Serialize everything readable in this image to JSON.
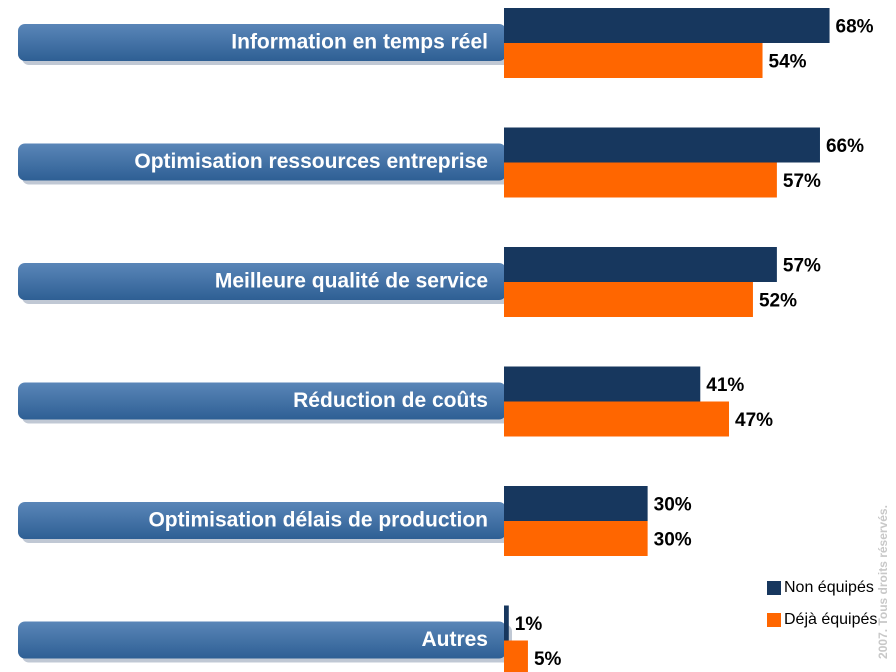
{
  "chart_data": {
    "type": "bar",
    "orientation": "horizontal",
    "categories": [
      "Information en temps réel",
      "Optimisation ressources entreprise",
      "Meilleure qualité de service",
      "Réduction de coûts",
      "Optimisation délais de production",
      "Autres"
    ],
    "series": [
      {
        "name": "Non équipés",
        "color": "#17375e",
        "values": [
          68,
          66,
          57,
          41,
          30,
          1
        ],
        "value_labels": [
          "68%",
          "66%",
          "57%",
          "41%",
          "30%",
          "1%"
        ]
      },
      {
        "name": "Déjà équipés",
        "color": "#ff6600",
        "values": [
          54,
          57,
          52,
          47,
          30,
          5
        ],
        "value_labels": [
          "54%",
          "57%",
          "52%",
          "47%",
          "30%",
          "5%"
        ]
      }
    ],
    "xlim": [
      0,
      80
    ],
    "legend": "lower right",
    "annotation": "2007. Tous droits réservés."
  }
}
